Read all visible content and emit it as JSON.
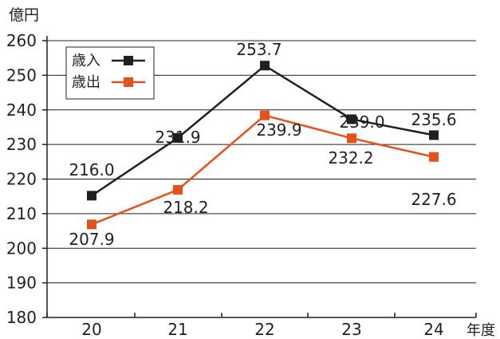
{
  "chart_data": {
    "type": "line",
    "unit_label": "億円",
    "xlabel": "年度",
    "categories": [
      "20",
      "21",
      "22",
      "23",
      "24"
    ],
    "ylim": [
      180,
      260
    ],
    "yticks": [
      "180",
      "190",
      "200",
      "210",
      "220",
      "230",
      "240",
      "250",
      "260"
    ],
    "grid": true,
    "legend_position": "top-left",
    "series": [
      {
        "name": "歳入",
        "color": "#231f20",
        "values": [
          216.0,
          231.9,
          253.7,
          239.0,
          235.6
        ],
        "plotted": [
          215.2,
          231.9,
          252.8,
          237.3,
          232.7
        ],
        "labels": [
          "216.0",
          "231.9",
          "253.7",
          "239.0",
          "235.6"
        ]
      },
      {
        "name": "歳出",
        "color": "#e8501a",
        "values": [
          207.9,
          218.2,
          239.9,
          232.2,
          227.6
        ],
        "plotted": [
          206.9,
          216.9,
          238.4,
          231.8,
          226.4
        ],
        "labels": [
          "207.9",
          "218.2",
          "239.9",
          "232.2",
          "227.6"
        ]
      }
    ]
  }
}
